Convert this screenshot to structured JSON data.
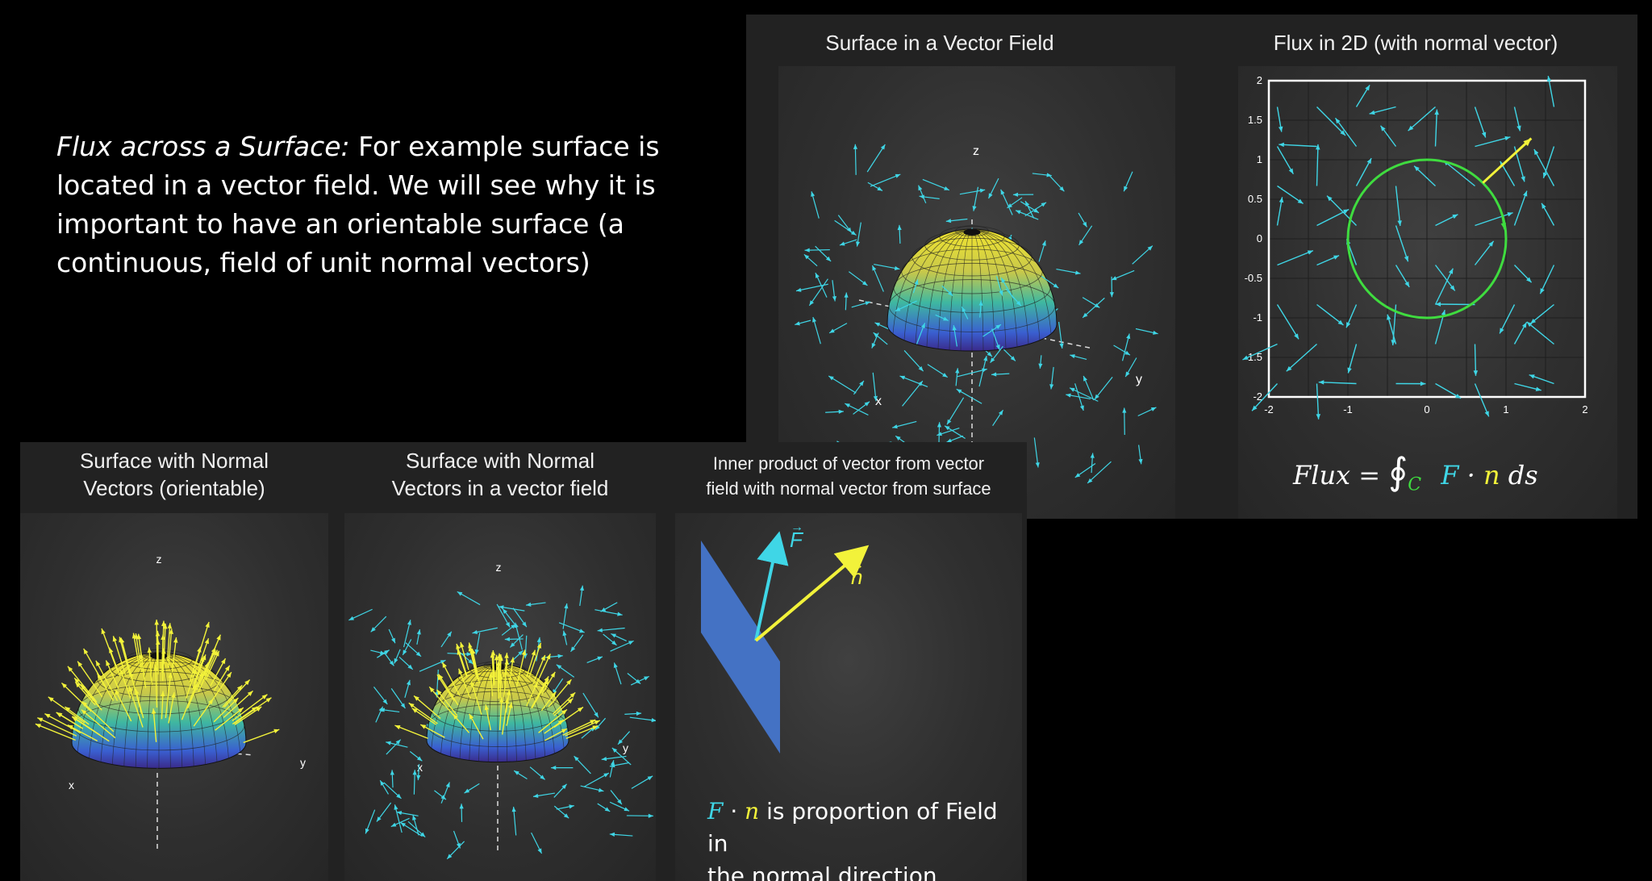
{
  "intro": {
    "title": "Flux across a Surface:",
    "body": " For example surface is located in a vector field. We will see why it is important to have an orientable surface (a continuous, field of unit normal vectors)"
  },
  "panels": {
    "surface_field": {
      "title": "Surface in a Vector Field"
    },
    "flux2d": {
      "title": "Flux in 2D (with normal vector)"
    },
    "normals": {
      "title_line1": "Surface with Normal",
      "title_line2": "Vectors (orientable)"
    },
    "normals_field": {
      "title_line1": "Surface with Normal",
      "title_line2": "Vectors in a vector field"
    },
    "inner": {
      "title_line1": "Inner product of vector from vector",
      "title_line2": "field with normal vector from surface"
    }
  },
  "axes3d": {
    "x": "x",
    "y": "y",
    "z": "z"
  },
  "flux2d": {
    "xticks": [
      "-2",
      "-1",
      "0",
      "1",
      "2"
    ],
    "yticks": [
      "2",
      "1.5",
      "1",
      "0.5",
      "0",
      "-0.5",
      "-1",
      "-1.5",
      "-2"
    ],
    "formula_lhs": "Flux =",
    "integral": "∮",
    "subscript": "C",
    "F": "F",
    "dot": "·",
    "n": "n",
    "ds": "ds"
  },
  "inner": {
    "F_label": "F",
    "n_label": "n",
    "caption_F": "F",
    "caption_dot": " · ",
    "caption_n": "n",
    "caption_rest": " is proportion of Field in",
    "caption_line2": "the normal direction"
  },
  "colors": {
    "field": "#3fd6e6",
    "normal": "#f2f23a",
    "circle": "#3fdc3f",
    "plane": "#4472c4",
    "board": "#333333",
    "panel": "#222222"
  }
}
